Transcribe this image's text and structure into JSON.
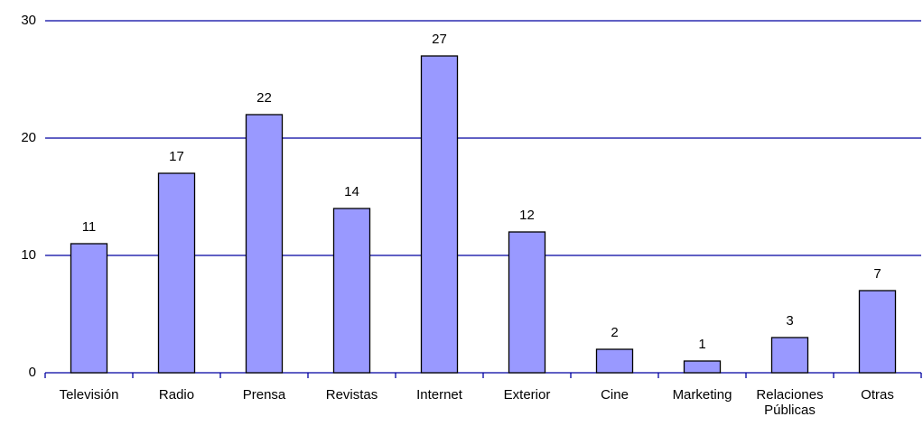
{
  "chart_data": {
    "type": "bar",
    "categories": [
      "Televisión",
      "Radio",
      "Prensa",
      "Revistas",
      "Internet",
      "Exterior",
      "Cine",
      "Marketing",
      "Relaciones Públicas",
      "Otras"
    ],
    "values": [
      11,
      17,
      22,
      14,
      27,
      12,
      2,
      1,
      3,
      7
    ],
    "color": "#9999ff",
    "ylim": [
      0,
      30
    ],
    "yticks": [
      0,
      10,
      20,
      30
    ],
    "grid": true
  }
}
